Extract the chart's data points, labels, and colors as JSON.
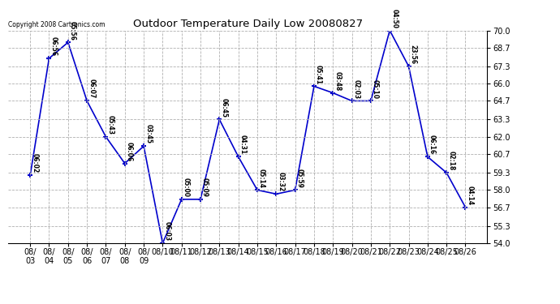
{
  "title": "Outdoor Temperature Daily Low 20080827",
  "copyright": "Copyright 2008 Cartronics.com",
  "line_color": "#0000cc",
  "background_color": "#ffffff",
  "grid_color": "#b0b0b0",
  "dates": [
    "08/03",
    "08/04",
    "08/05",
    "08/06",
    "08/07",
    "08/08",
    "08/09",
    "08/10",
    "08/11",
    "08/12",
    "08/13",
    "08/14",
    "08/15",
    "08/16",
    "08/17",
    "08/18",
    "08/19",
    "08/20",
    "08/21",
    "08/22",
    "08/23",
    "08/24",
    "08/25",
    "08/26"
  ],
  "values": [
    59.1,
    67.9,
    69.1,
    64.7,
    62.0,
    60.0,
    61.3,
    54.0,
    57.3,
    57.3,
    63.3,
    60.5,
    58.0,
    57.7,
    58.0,
    65.8,
    65.3,
    64.7,
    64.7,
    70.0,
    67.3,
    60.5,
    59.3,
    56.7
  ],
  "labels": [
    "06:02",
    "06:56",
    "05:56",
    "06:07",
    "05:43",
    "06:06",
    "03:45",
    "06:03",
    "05:00",
    "05:09",
    "06:45",
    "04:31",
    "05:14",
    "03:32",
    "05:59",
    "05:41",
    "03:48",
    "02:03",
    "05:10",
    "04:50",
    "23:56",
    "06:16",
    "02:18",
    "04:14"
  ],
  "ylim": [
    54.0,
    70.0
  ],
  "yticks": [
    54.0,
    55.3,
    56.7,
    58.0,
    59.3,
    60.7,
    62.0,
    63.3,
    64.7,
    66.0,
    67.3,
    68.7,
    70.0
  ]
}
